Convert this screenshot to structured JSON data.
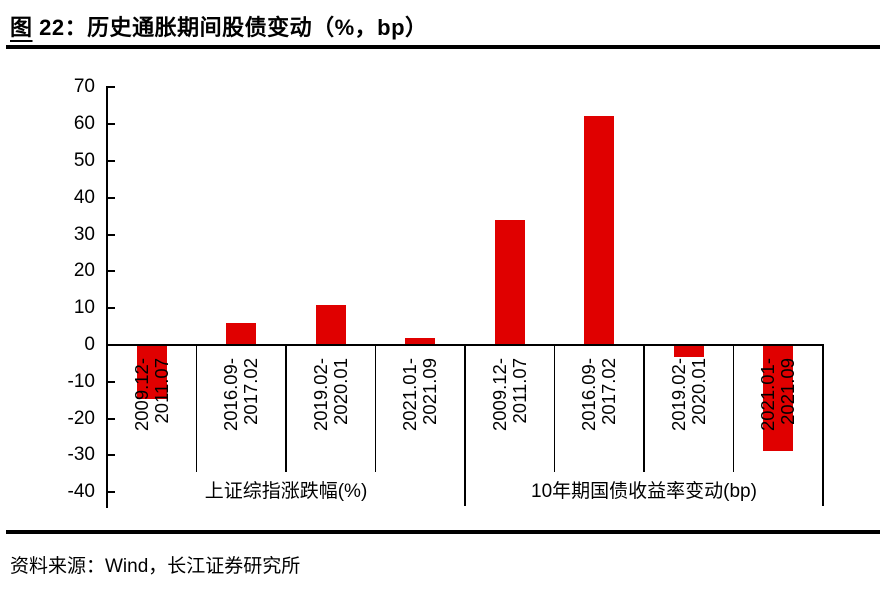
{
  "figure": {
    "title_prefix": "图",
    "title_rest": " 22：历史通胀期间股债变动（%，bp）",
    "source": "资料来源：Wind，长江证券研究所"
  },
  "colors": {
    "bar": "#e00000",
    "axis": "#000000",
    "text": "#000000"
  },
  "chart_data": {
    "type": "bar",
    "title": "图 22：历史通胀期间股债变动（%，bp）",
    "xlabel": "",
    "ylabel": "",
    "ylim": [
      -40,
      70
    ],
    "ytick_step": 10,
    "yticks": [
      70,
      60,
      50,
      40,
      30,
      20,
      10,
      0,
      -10,
      -20,
      -30,
      -40
    ],
    "grid": false,
    "legend": "none",
    "bar_color": "#e00000",
    "groups": [
      {
        "label": "上证综指涨跌幅(%)",
        "categories": [
          "2009.12-2011.07",
          "2016.09-2017.02",
          "2019.02-2020.01",
          "2021.01-2021.09"
        ],
        "values": [
          -14.3,
          5.6,
          10.6,
          1.5
        ]
      },
      {
        "label": "10年期国债收益率变动(bp)",
        "categories": [
          "2009.12-2011.07",
          "2016.09-2017.02",
          "2019.02-2020.01",
          "2021.01-2021.09"
        ],
        "values": [
          33.8,
          62,
          -3,
          -28.4
        ]
      }
    ]
  }
}
